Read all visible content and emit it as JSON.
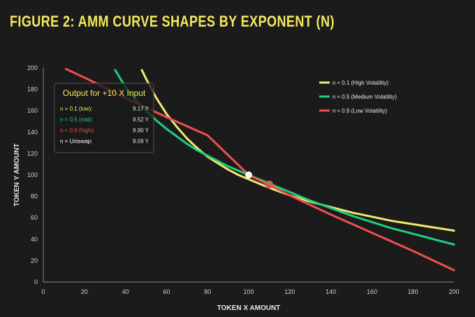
{
  "title": "FIGURE 2: AMM CURVE SHAPES BY EXPONENT (N)",
  "chart_data": {
    "type": "line",
    "xlabel": "TOKEN X AMOUNT",
    "ylabel": "TOKEN Y AMOUNT",
    "xlim": [
      0,
      200
    ],
    "ylim": [
      0,
      200
    ],
    "xticks": [
      0,
      20,
      40,
      60,
      80,
      100,
      120,
      140,
      160,
      180,
      200
    ],
    "yticks": [
      0,
      20,
      40,
      60,
      80,
      100,
      120,
      140,
      160,
      180,
      200
    ],
    "grid": false,
    "legend_position": "top-right",
    "series": [
      {
        "name": "n ≈ 0.1 (High Volatility)",
        "color": "#f2ea6c",
        "x": [
          48,
          50,
          55,
          60,
          65,
          70,
          75,
          80,
          85,
          90,
          95,
          100,
          110,
          120,
          130,
          140,
          150,
          160,
          170,
          180,
          190,
          200
        ],
        "y": [
          198,
          190,
          172,
          157,
          145,
          134,
          125,
          117,
          111,
          105,
          100,
          96,
          88,
          81,
          75,
          70,
          65,
          61,
          57,
          54,
          51,
          48
        ]
      },
      {
        "name": "n ≈ 0.5 (Medium Volatility)",
        "color": "#1ecf82",
        "x": [
          35,
          40,
          45,
          50,
          55,
          60,
          65,
          70,
          75,
          80,
          85,
          90,
          95,
          100,
          110,
          120,
          130,
          140,
          150,
          160,
          170,
          180,
          190,
          200
        ],
        "y": [
          198,
          182,
          170,
          160,
          151,
          143,
          136,
          129,
          123,
          118,
          113,
          108,
          104,
          100,
          92,
          84,
          76,
          69,
          62,
          56,
          50,
          45,
          40,
          35
        ]
      },
      {
        "name": "n ≈ 0.9 (Low Volatility)",
        "color": "#f04f4f",
        "x": [
          11,
          20,
          40,
          60,
          80,
          100,
          120,
          140,
          160,
          180,
          200
        ],
        "y": [
          199,
          191,
          172,
          154,
          137,
          100,
          81,
          63,
          46,
          29,
          11
        ]
      }
    ],
    "points": [
      {
        "x": 100,
        "y": 100,
        "style": "filled-white"
      },
      {
        "x": 110,
        "y": 91,
        "style": "red-ring"
      }
    ],
    "annotation_box": {
      "title": "Output for +10 X Input",
      "rows": [
        {
          "label": "n = 0.1 (low):",
          "value": "9.17 Y",
          "color": "#f2ea6c"
        },
        {
          "label": "n = 0.5 (mid):",
          "value": "9.52 Y",
          "color": "#1ecf82"
        },
        {
          "label": "n = 0.9 (high):",
          "value": "9.90 Y",
          "color": "#f04f4f"
        },
        {
          "label": "n = Uniswap:",
          "value": "9.09 Y",
          "color": "#ffffff"
        }
      ]
    }
  }
}
